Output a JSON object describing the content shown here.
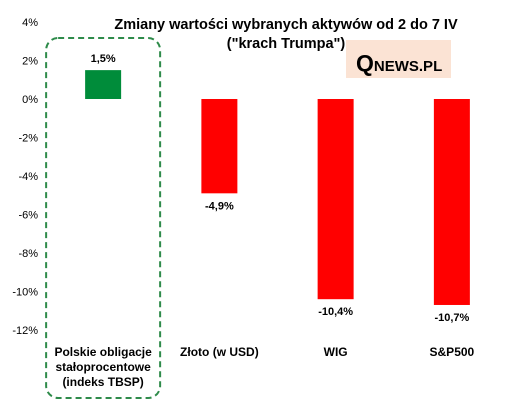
{
  "chart_data": {
    "type": "bar",
    "title": "Zmiany wartości wybranych aktywów od 2 do 7 IV",
    "subtitle": "(\"krach Trumpa\")",
    "categories": [
      [
        "Polskie obligacje",
        "stałoprocentowe",
        "(indeks TBSP)"
      ],
      [
        "Złoto (w USD)"
      ],
      [
        "WIG"
      ],
      [
        "S&P500"
      ]
    ],
    "values": [
      1.5,
      -4.9,
      -10.4,
      -10.7
    ],
    "data_labels": [
      "1,5%",
      "-4,9%",
      "-10,4%",
      "-10,7%"
    ],
    "bar_colors": [
      "#008c3a",
      "#ff0000",
      "#ff0000",
      "#ff0000"
    ],
    "yticks": [
      4,
      2,
      0,
      -2,
      -4,
      -6,
      -8,
      -10,
      -12
    ],
    "ytick_labels": [
      "4%",
      "2%",
      "0%",
      "-2%",
      "-4%",
      "-6%",
      "-8%",
      "-10%",
      "-12%"
    ],
    "ylim": [
      -12,
      4
    ],
    "grid": false,
    "highlight": {
      "category_index": 0,
      "style": "dashed-rounded-box",
      "color": "#2e8b4a"
    },
    "xlabel": "",
    "ylabel": ""
  },
  "logo": {
    "initial": "Q",
    "rest": "NEWS.PL"
  }
}
